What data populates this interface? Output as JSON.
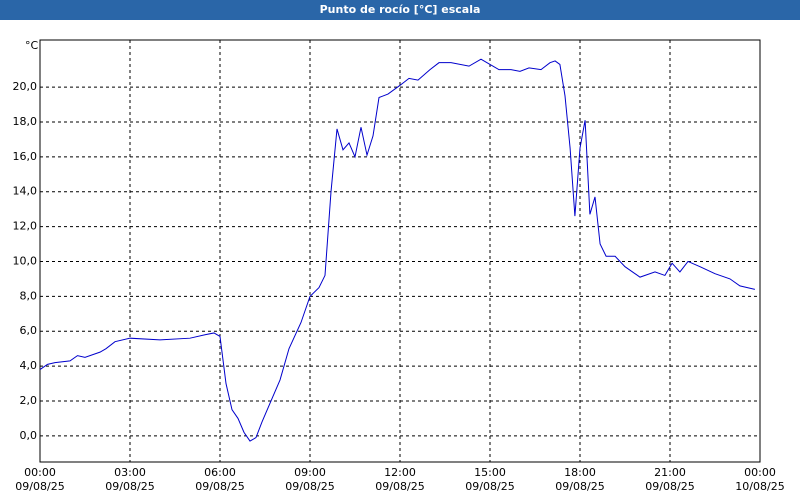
{
  "chart_data": {
    "type": "line",
    "title": "Punto de rocío [°C] escala",
    "y_label": "°C",
    "x": [
      0,
      0.25,
      0.5,
      1.0,
      1.25,
      1.5,
      2.0,
      2.2,
      2.5,
      3.0,
      4.0,
      5.0,
      5.5,
      5.8,
      6.0,
      6.2,
      6.4,
      6.6,
      6.8,
      7.0,
      7.2,
      7.4,
      7.7,
      8.0,
      8.3,
      8.7,
      9.0,
      9.3,
      9.5,
      9.7,
      9.9,
      10.1,
      10.3,
      10.5,
      10.7,
      10.9,
      11.1,
      11.3,
      11.6,
      12.0,
      12.3,
      12.6,
      13.0,
      13.3,
      13.7,
      14.3,
      14.7,
      15.0,
      15.3,
      15.7,
      16.0,
      16.3,
      16.7,
      17.0,
      17.17,
      17.33,
      17.5,
      17.67,
      17.83,
      18.0,
      18.17,
      18.33,
      18.5,
      18.67,
      18.87,
      19.17,
      19.5,
      20.0,
      20.5,
      20.83,
      21.07,
      21.33,
      21.6,
      22.0,
      22.5,
      23.0,
      23.33,
      23.83
    ],
    "series": [
      {
        "name": "Punto de rocío",
        "color": "#0000cc",
        "values": [
          3.8,
          4.1,
          4.2,
          4.3,
          4.6,
          4.5,
          4.8,
          5.0,
          5.4,
          5.6,
          5.5,
          5.6,
          5.8,
          5.9,
          5.7,
          3.0,
          1.5,
          1.0,
          0.2,
          -0.3,
          -0.1,
          0.8,
          2.0,
          3.2,
          5.0,
          6.5,
          8.0,
          8.5,
          9.2,
          14.0,
          17.6,
          16.4,
          16.8,
          16.0,
          17.7,
          16.1,
          17.2,
          19.4,
          19.6,
          20.1,
          20.5,
          20.4,
          21.0,
          21.4,
          21.4,
          21.2,
          21.6,
          21.3,
          21.0,
          21.0,
          20.9,
          21.1,
          21.0,
          21.4,
          21.5,
          21.3,
          19.5,
          16.5,
          12.6,
          16.5,
          18.1,
          12.7,
          13.7,
          11.0,
          10.3,
          10.3,
          9.7,
          9.1,
          9.4,
          9.2,
          9.9,
          9.4,
          10.0,
          9.7,
          9.3,
          9.0,
          8.6,
          8.4
        ]
      }
    ],
    "xlim": [
      0,
      24
    ],
    "xticks": [
      {
        "value": 0,
        "label": "00:00\n09/08/25"
      },
      {
        "value": 3,
        "label": "03:00\n09/08/25"
      },
      {
        "value": 6,
        "label": "06:00\n09/08/25"
      },
      {
        "value": 9,
        "label": "09:00\n09/08/25"
      },
      {
        "value": 12,
        "label": "12:00\n09/08/25"
      },
      {
        "value": 15,
        "label": "15:00\n09/08/25"
      },
      {
        "value": 18,
        "label": "18:00\n09/08/25"
      },
      {
        "value": 21,
        "label": "21:00\n09/08/25"
      },
      {
        "value": 24,
        "label": "00:00\n10/08/25"
      }
    ],
    "ylim": [
      -1.5,
      22.7
    ],
    "yticks": [
      {
        "value": 0,
        "label": "0,0"
      },
      {
        "value": 2,
        "label": "2,0"
      },
      {
        "value": 4,
        "label": "4,0"
      },
      {
        "value": 6,
        "label": "6,0"
      },
      {
        "value": 8,
        "label": "8,0"
      },
      {
        "value": 10,
        "label": "10,0"
      },
      {
        "value": 12,
        "label": "12,0"
      },
      {
        "value": 14,
        "label": "14,0"
      },
      {
        "value": 16,
        "label": "16,0"
      },
      {
        "value": 18,
        "label": "18,0"
      },
      {
        "value": 20,
        "label": "20,0"
      }
    ],
    "grid": true
  }
}
